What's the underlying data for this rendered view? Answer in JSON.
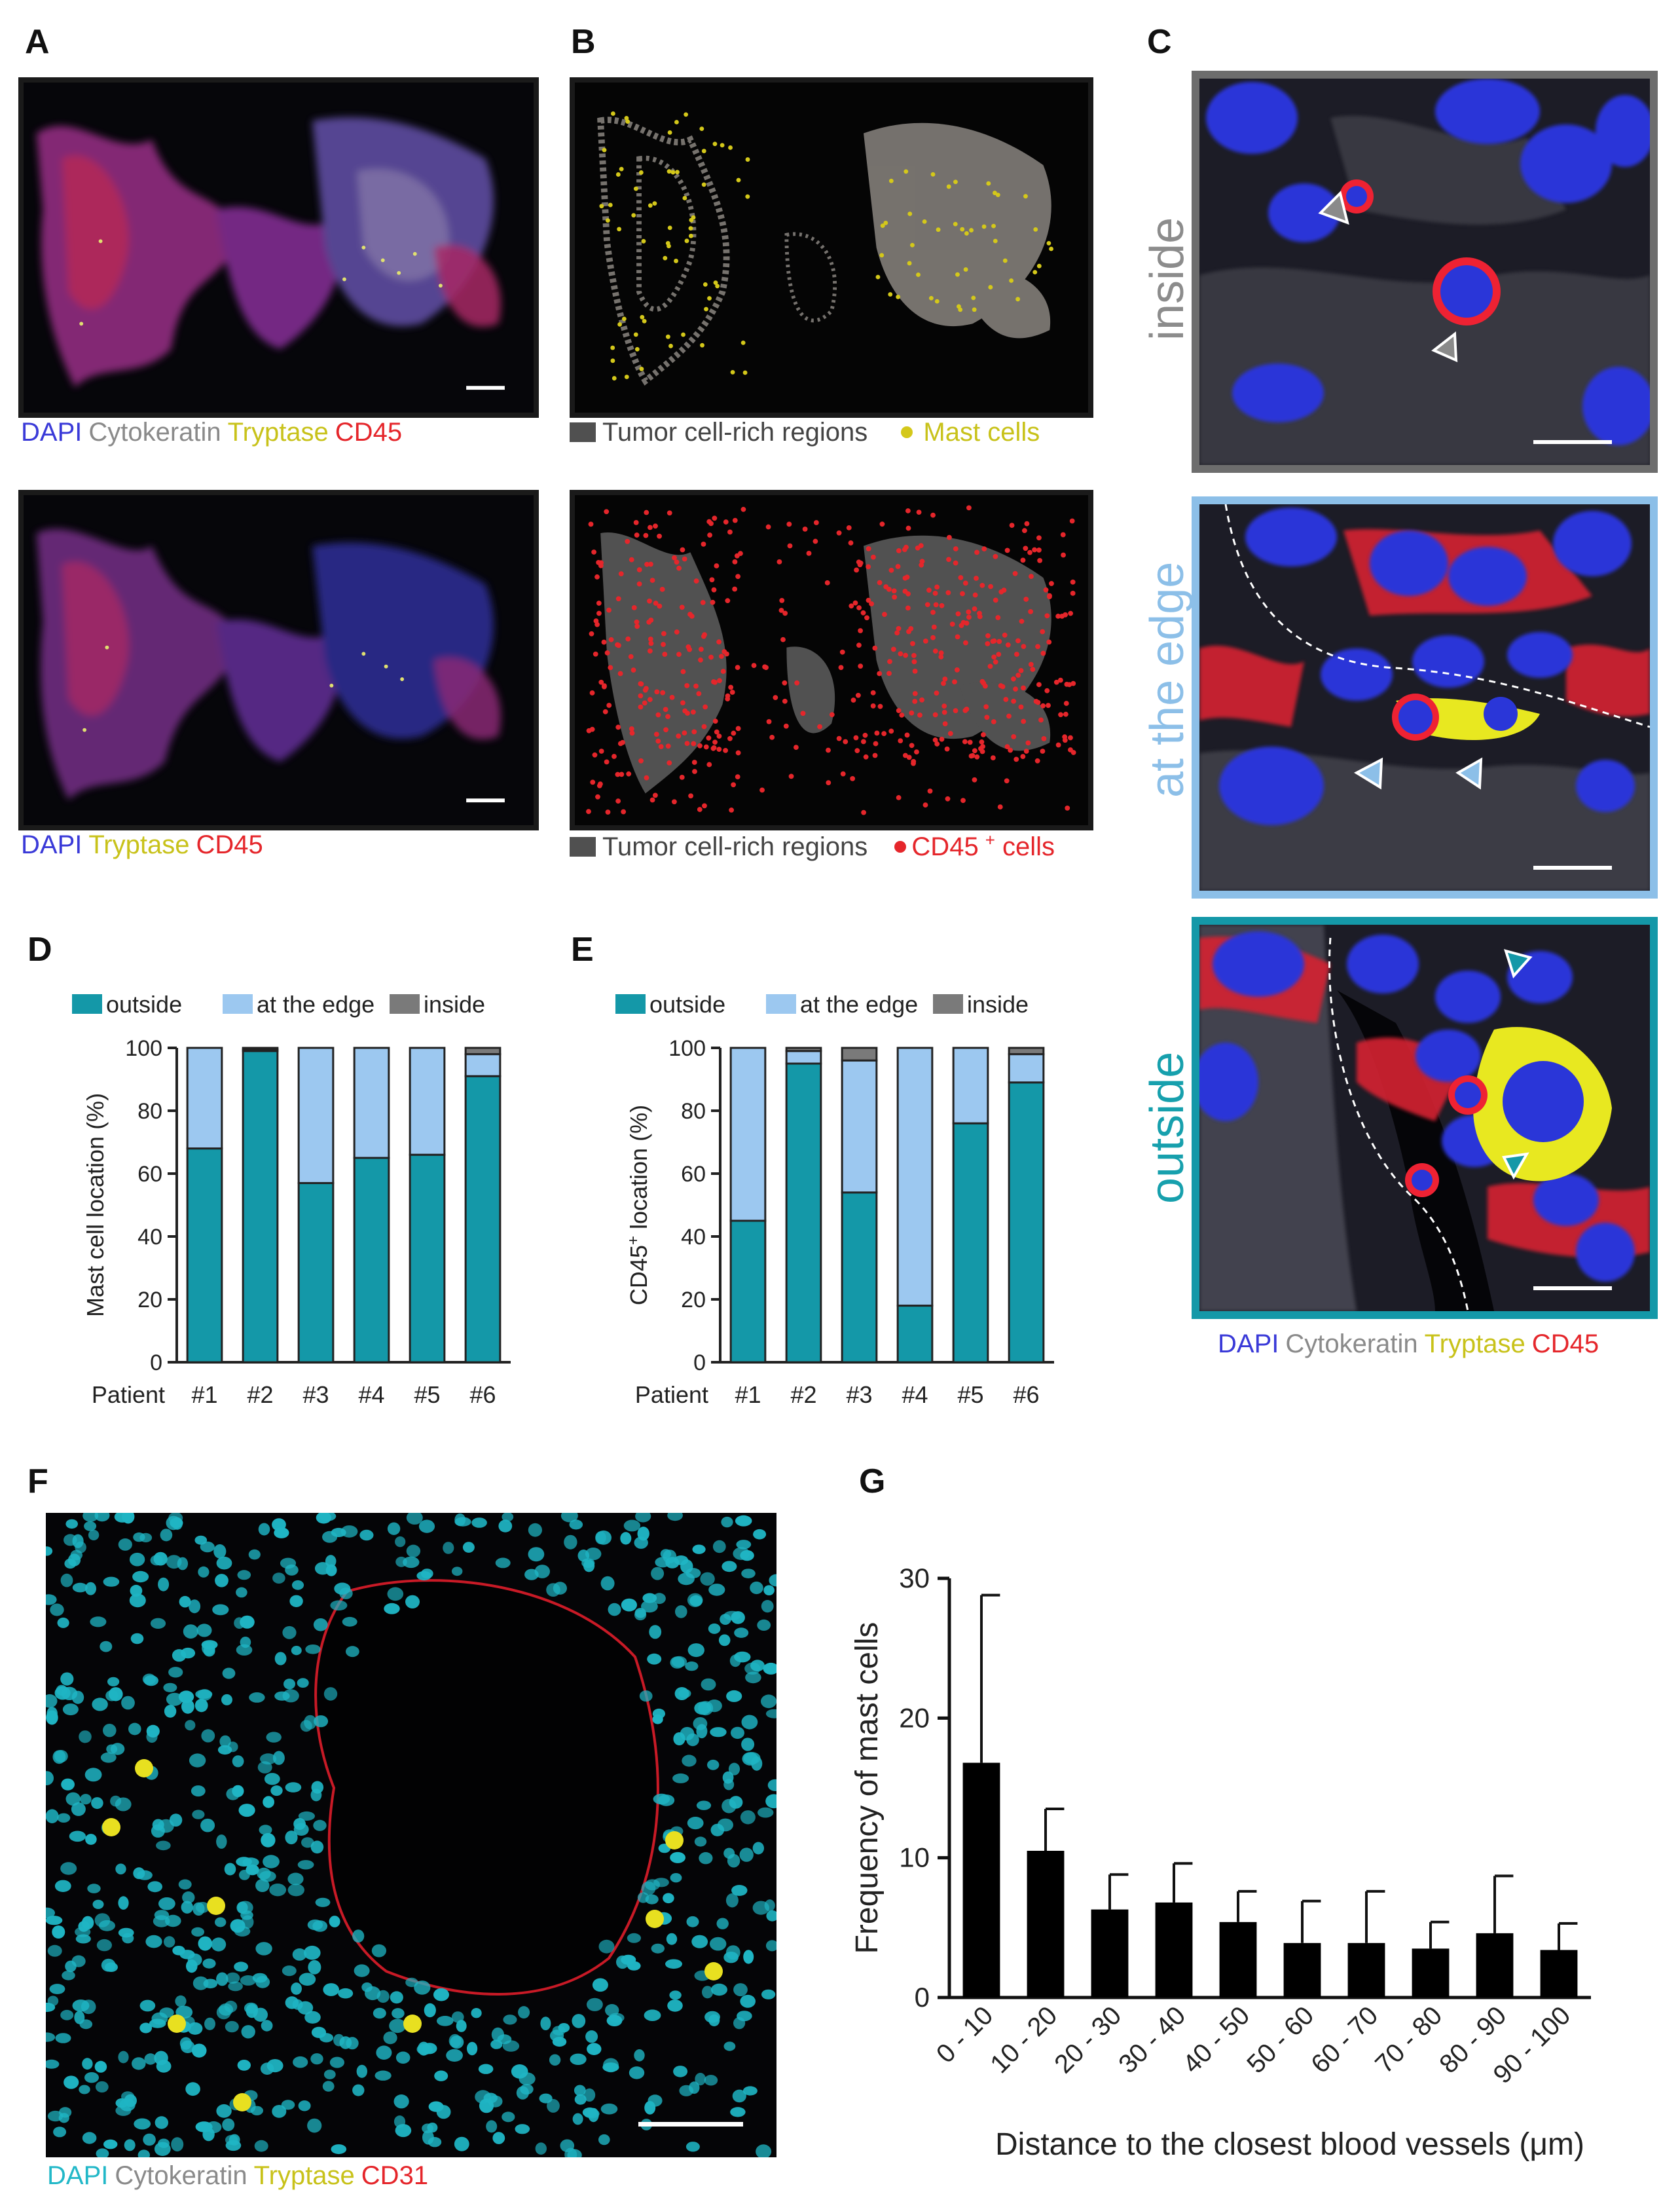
{
  "panels": {
    "A": "A",
    "B": "B",
    "C": "C",
    "D": "D",
    "E": "E",
    "F": "F",
    "G": "G"
  },
  "legendA1": [
    {
      "text": "DAPI",
      "color": "#3a3ad8"
    },
    {
      "text": "Cytokeratin",
      "color": "#8a8a8a"
    },
    {
      "text": "Tryptase",
      "color": "#c8c21a"
    },
    {
      "text": "CD45",
      "color": "#e5262b"
    }
  ],
  "legendA2": [
    {
      "text": "DAPI",
      "color": "#3a3ad8"
    },
    {
      "text": "Tryptase",
      "color": "#c8c21a"
    },
    {
      "text": "CD45",
      "color": "#e5262b"
    }
  ],
  "legendB1": {
    "regions": "Tumor cell-rich regions",
    "cells": "Mast cells",
    "cells_color": "#d4c81a"
  },
  "legendB2": {
    "regions": "Tumor cell-rich regions",
    "cells_main": "CD45",
    "cells_sup": "+",
    "cells_suffix": " cells",
    "cells_color": "#e5262b"
  },
  "legendC": [
    {
      "text": "DAPI",
      "color": "#3a3ad8"
    },
    {
      "text": "Cytokeratin",
      "color": "#8a8a8a"
    },
    {
      "text": "Tryptase",
      "color": "#c8c21a"
    },
    {
      "text": "CD45",
      "color": "#e5262b"
    }
  ],
  "legendF": [
    {
      "text": "DAPI",
      "color": "#22b8c8"
    },
    {
      "text": "Cytokeratin",
      "color": "#8a8a8a"
    },
    {
      "text": "Tryptase",
      "color": "#c8c21a"
    },
    {
      "text": "CD31",
      "color": "#e5262b"
    }
  ],
  "cLabels": {
    "inside": {
      "text": "inside",
      "color": "#8c8c8c"
    },
    "edge": {
      "text": "at the edge",
      "color": "#8cbfe8"
    },
    "outside": {
      "text": "outside",
      "color": "#17a0ad"
    }
  },
  "colors": {
    "outside": "#1498a8",
    "edge": "#9cc8f0",
    "inside": "#7a7a7a",
    "inside_border": "#6d6d6d",
    "edge_border": "#8cbfe8",
    "outside_border": "#1498a8"
  },
  "chart_data": [
    {
      "id": "D",
      "type": "bar",
      "stacked": true,
      "xlabel": "Patient",
      "categories": [
        "#1",
        "#2",
        "#3",
        "#4",
        "#5",
        "#6"
      ],
      "ylabel": "Mast cell location (%)",
      "ylim": [
        0,
        100
      ],
      "yticks": [
        0,
        20,
        40,
        60,
        80,
        100
      ],
      "legend": [
        "outside",
        "at the edge",
        "inside"
      ],
      "series": [
        {
          "name": "outside",
          "values": [
            68,
            99,
            57,
            65,
            66,
            91
          ]
        },
        {
          "name": "at the edge",
          "values": [
            32,
            0.5,
            43,
            35,
            34,
            7
          ]
        },
        {
          "name": "inside",
          "values": [
            0,
            0.5,
            0,
            0,
            0,
            2
          ]
        }
      ]
    },
    {
      "id": "E",
      "type": "bar",
      "stacked": true,
      "xlabel": "Patient",
      "categories": [
        "#1",
        "#2",
        "#3",
        "#4",
        "#5",
        "#6"
      ],
      "ylabel_main": "CD45",
      "ylabel_sup": "+",
      "ylabel_suffix": " location (%)",
      "ylim": [
        0,
        100
      ],
      "yticks": [
        0,
        20,
        40,
        60,
        80,
        100
      ],
      "legend": [
        "outside",
        "at the edge",
        "inside"
      ],
      "series": [
        {
          "name": "outside",
          "values": [
            45,
            95,
            54,
            18,
            76,
            89
          ]
        },
        {
          "name": "at the edge",
          "values": [
            55,
            4,
            42,
            82,
            24,
            9
          ]
        },
        {
          "name": "inside",
          "values": [
            0,
            1,
            4,
            0,
            0,
            2
          ]
        }
      ]
    },
    {
      "id": "G",
      "type": "bar",
      "xlabel": "Distance to the closest blood vessels (μm)",
      "ylabel": "Frequency of  mast cells",
      "categories": [
        "0 - 10",
        "10 - 20",
        "20 - 30",
        "30 - 40",
        "40 - 50",
        "50 - 60",
        "60 - 70",
        "70 - 80",
        "80 - 90",
        "90 - 100"
      ],
      "values": [
        16.8,
        10.5,
        6.3,
        6.8,
        5.4,
        3.9,
        3.9,
        3.5,
        4.6,
        3.4
      ],
      "errors": [
        12.0,
        3.0,
        2.5,
        2.8,
        2.2,
        3.0,
        3.7,
        1.9,
        4.1,
        1.9
      ],
      "ylim": [
        0,
        30
      ],
      "yticks": [
        0,
        10,
        20,
        30
      ]
    }
  ]
}
